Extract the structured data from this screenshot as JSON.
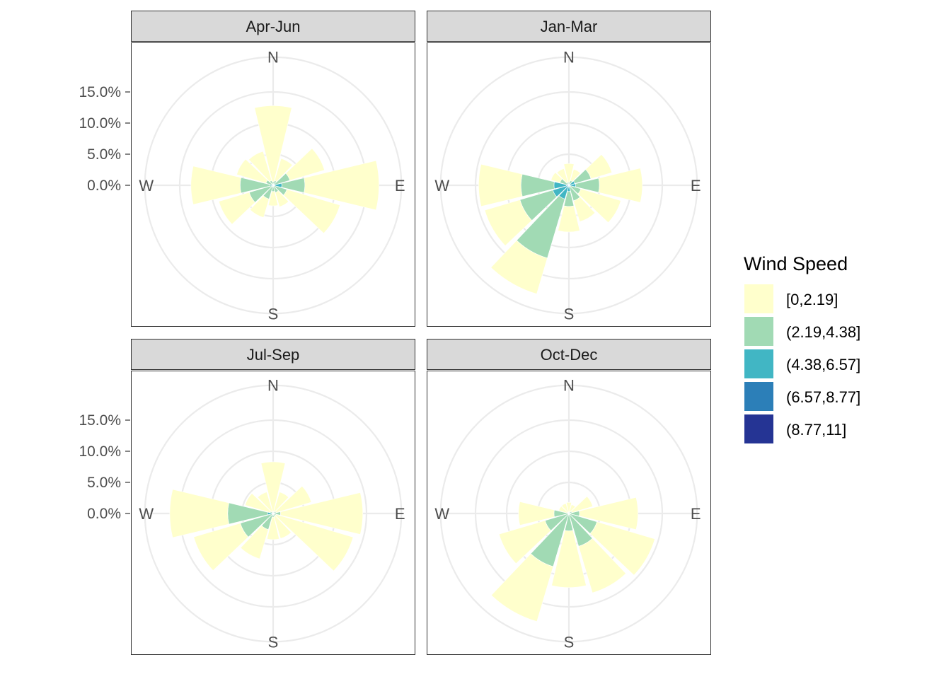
{
  "chart_data": {
    "type": "bar",
    "coord": "polar",
    "stacked": true,
    "directions_deg": [
      0,
      30,
      60,
      90,
      120,
      150,
      180,
      210,
      240,
      270,
      300,
      330
    ],
    "direction_labels": {
      "N": "N",
      "E": "E",
      "S": "S",
      "W": "W"
    },
    "ytick_values": [
      0,
      5,
      10,
      15
    ],
    "ytick_labels": [
      "0.0%",
      "5.0%",
      "10.0%",
      "15.0%"
    ],
    "ylim": [
      0,
      20.6
    ],
    "grid": true,
    "legend": {
      "title": "Wind Speed",
      "position": "right",
      "entries": [
        "[0,2.19]",
        "(2.19,4.38]",
        "(4.38,6.57]",
        "(6.57,8.77]",
        "(8.77,11]"
      ],
      "colors": [
        "#FFFFCC",
        "#A1DAB4",
        "#41B6C4",
        "#2C7FB8",
        "#253494"
      ]
    },
    "facets": [
      {
        "title": "Apr-Jun",
        "series": [
          {
            "name": "[0,2.19]",
            "values": [
              12.2,
              3.7,
              5.8,
              11.9,
              8.9,
              2.4,
              2.3,
              3.1,
              5.1,
              7.9,
              4.9,
              4.9
            ]
          },
          {
            "name": "(2.19,4.38]",
            "values": [
              0.6,
              0.6,
              2.5,
              3.7,
              2.1,
              1.2,
              1.0,
              2.1,
              3.7,
              4.8,
              1.1,
              0.8
            ]
          },
          {
            "name": "(4.38,6.57]",
            "values": [
              0,
              0.2,
              0.3,
              1.1,
              0.2,
              0,
              0,
              0.2,
              0.3,
              0.5,
              0.1,
              0
            ]
          },
          {
            "name": "(6.57,8.77]",
            "values": [
              0,
              0,
              0,
              0.3,
              0,
              0,
              0,
              0,
              0,
              0,
              0,
              0
            ]
          },
          {
            "name": "(8.77,11]",
            "values": [
              0,
              0,
              0,
              0,
              0,
              0,
              0,
              0,
              0,
              0,
              0,
              0
            ]
          }
        ]
      },
      {
        "title": "Jan-Mar",
        "series": [
          {
            "name": "[0,2.19]",
            "values": [
              3.0,
              1.9,
              3.5,
              6.9,
              6.7,
              3.5,
              4.1,
              6.0,
              5.9,
              6.8,
              1.5,
              2.3
            ]
          },
          {
            "name": "(2.19,4.38]",
            "values": [
              0.5,
              0.6,
              2.7,
              3.8,
              1.7,
              2.3,
              2.4,
              9.9,
              5.5,
              5.3,
              1.2,
              0.5
            ]
          },
          {
            "name": "(4.38,6.57]",
            "values": [
              0,
              0.2,
              0.9,
              0.9,
              0.3,
              0.3,
              0.9,
              2.0,
              2.4,
              2.0,
              0.2,
              0
            ]
          },
          {
            "name": "(6.57,8.77]",
            "values": [
              0,
              0,
              0.1,
              0.2,
              0,
              0,
              0.1,
              0.3,
              0.3,
              0.4,
              0.1,
              0
            ]
          },
          {
            "name": "(8.77,11]",
            "values": [
              0,
              0,
              0,
              0,
              0,
              0,
              0,
              0,
              0,
              0,
              0,
              0
            ]
          }
        ]
      },
      {
        "title": "Jul-Sep",
        "series": [
          {
            "name": "[0,2.19]",
            "values": [
              8.0,
              3.3,
              5.9,
              13.2,
              12.9,
              3.7,
              3.6,
              4.9,
              7.8,
              9.3,
              4.2,
              3.3
            ]
          },
          {
            "name": "(2.19,4.38]",
            "values": [
              0.3,
              0.3,
              0.5,
              0.9,
              0.5,
              0.5,
              0.6,
              2.6,
              5.3,
              6.4,
              0.5,
              0.3
            ]
          },
          {
            "name": "(4.38,6.57]",
            "values": [
              0,
              0,
              0,
              0.3,
              0,
              0,
              0,
              0.1,
              0.2,
              0.9,
              0,
              0
            ]
          },
          {
            "name": "(6.57,8.77]",
            "values": [
              0,
              0,
              0,
              0,
              0,
              0,
              0,
              0,
              0,
              0,
              0,
              0
            ]
          },
          {
            "name": "(8.77,11]",
            "values": [
              0,
              0,
              0,
              0,
              0,
              0,
              0,
              0,
              0,
              0,
              0,
              0
            ]
          }
        ]
      },
      {
        "title": "Oct-Dec",
        "series": [
          {
            "name": "[0,2.19]",
            "values": [
              1.6,
              1.2,
              3.5,
              9.4,
              9.7,
              7.8,
              9.1,
              9.2,
              7.7,
              5.7,
              1.4,
              1.5
            ]
          },
          {
            "name": "(2.19,4.38]",
            "values": [
              0.2,
              0.3,
              0.4,
              1.4,
              4.6,
              5.4,
              2.7,
              8.7,
              3.9,
              2.3,
              0.3,
              0.2
            ]
          },
          {
            "name": "(4.38,6.57]",
            "values": [
              0,
              0,
              0.1,
              0.3,
              0.1,
              0.1,
              0.1,
              0.2,
              0.1,
              0.1,
              0,
              0
            ]
          },
          {
            "name": "(6.57,8.77]",
            "values": [
              0,
              0,
              0,
              0,
              0,
              0,
              0,
              0,
              0,
              0,
              0,
              0
            ]
          },
          {
            "name": "(8.77,11]",
            "values": [
              0,
              0,
              0,
              0,
              0,
              0,
              0,
              0,
              0,
              0,
              0,
              0
            ]
          }
        ]
      }
    ]
  }
}
